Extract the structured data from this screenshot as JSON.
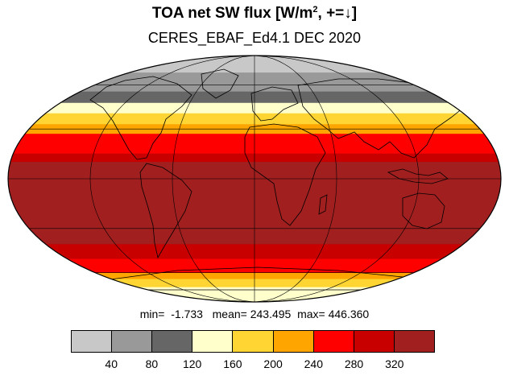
{
  "title": {
    "main": "TOA net SW flux [W/m",
    "sup": "2",
    "tail": ", +=↓]"
  },
  "subtitle": "CERES_EBAF_Ed4.1 DEC 2020",
  "stats": {
    "text": "min=  -1.733   mean= 243.495  max= 446.360",
    "min": -1.733,
    "mean": 243.495,
    "max": 446.36
  },
  "legend": {
    "colors": [
      "#c8c8c8",
      "#999999",
      "#666666",
      "#ffffcc",
      "#fed533",
      "#fea500",
      "#ff0000",
      "#c80000",
      "#a11f1f"
    ],
    "ticks": [
      "40",
      "80",
      "120",
      "160",
      "200",
      "240",
      "280",
      "320"
    ]
  },
  "map": {
    "projection": "Mollweide",
    "gridlines": true,
    "bands": [
      {
        "lat": [
          70,
          90
        ],
        "color": "#c8c8c8"
      },
      {
        "lat": [
          55,
          70
        ],
        "color": "#999999"
      },
      {
        "lat": [
          47,
          55
        ],
        "color": "#666666"
      },
      {
        "lat": [
          40,
          47
        ],
        "color": "#ffffcc"
      },
      {
        "lat": [
          33,
          40
        ],
        "color": "#fed533"
      },
      {
        "lat": [
          27,
          33
        ],
        "color": "#fea500"
      },
      {
        "lat": [
          15,
          27
        ],
        "color": "#ff0000"
      },
      {
        "lat": [
          10,
          15
        ],
        "color": "#c80000"
      },
      {
        "lat": [
          -40,
          10
        ],
        "color": "#a11f1f"
      },
      {
        "lat": [
          -50,
          -40
        ],
        "color": "#c80000"
      },
      {
        "lat": [
          -60,
          -50
        ],
        "color": "#ff0000"
      },
      {
        "lat": [
          -65,
          -60
        ],
        "color": "#fea500"
      },
      {
        "lat": [
          -72,
          -65
        ],
        "color": "#fed533"
      },
      {
        "lat": [
          -90,
          -72
        ],
        "color": "#ffffcc"
      }
    ]
  }
}
